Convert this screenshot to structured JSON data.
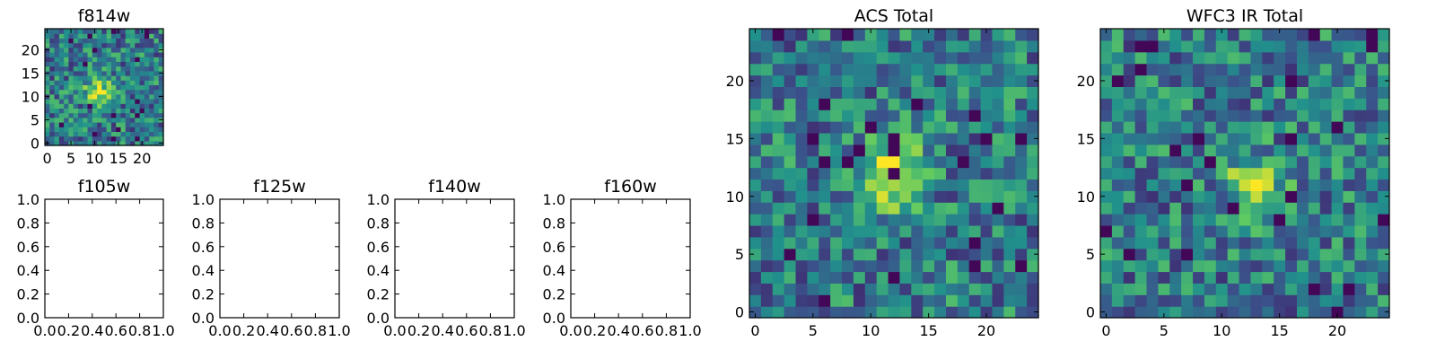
{
  "figure": {
    "background": "#ffffff",
    "colormap": [
      "#440154",
      "#3b528b",
      "#21918c",
      "#5ec962",
      "#fde725"
    ]
  },
  "chart_data": [
    {
      "type": "heatmap",
      "title": "f814w",
      "grid_size": 25,
      "seed": 11,
      "bright_center": [
        11,
        11
      ],
      "bright_sigma": 2.2,
      "xticks": [
        0,
        5,
        10,
        15,
        20
      ],
      "yticks": [
        0,
        5,
        10,
        15,
        20
      ],
      "xlim": [
        -0.5,
        24.5
      ],
      "ylim": [
        -0.5,
        24.5
      ]
    },
    {
      "type": "empty",
      "title": "f105w",
      "xlim": [
        0,
        1
      ],
      "ylim": [
        0,
        1
      ],
      "xticks": [
        "0.0",
        "0.2",
        "0.4",
        "0.6",
        "0.8",
        "1.0"
      ],
      "yticks": [
        "0.0",
        "0.2",
        "0.4",
        "0.6",
        "0.8",
        "1.0"
      ]
    },
    {
      "type": "empty",
      "title": "f125w",
      "xlim": [
        0,
        1
      ],
      "ylim": [
        0,
        1
      ],
      "xticks": [
        "0.0",
        "0.2",
        "0.4",
        "0.6",
        "0.8",
        "1.0"
      ],
      "yticks": [
        "0.0",
        "0.2",
        "0.4",
        "0.6",
        "0.8",
        "1.0"
      ]
    },
    {
      "type": "empty",
      "title": "f140w",
      "xlim": [
        0,
        1
      ],
      "ylim": [
        0,
        1
      ],
      "xticks": [
        "0.0",
        "0.2",
        "0.4",
        "0.6",
        "0.8",
        "1.0"
      ],
      "yticks": [
        "0.0",
        "0.2",
        "0.4",
        "0.6",
        "0.8",
        "1.0"
      ]
    },
    {
      "type": "empty",
      "title": "f160w",
      "xlim": [
        0,
        1
      ],
      "ylim": [
        0,
        1
      ],
      "xticks": [
        "0.0",
        "0.2",
        "0.4",
        "0.6",
        "0.8",
        "1.0"
      ],
      "yticks": [
        "0.0",
        "0.2",
        "0.4",
        "0.6",
        "0.8",
        "1.0"
      ]
    },
    {
      "type": "heatmap",
      "title": "ACS Total",
      "grid_size": 25,
      "seed": 23,
      "bright_center": [
        11.5,
        12
      ],
      "bright_sigma": 2.2,
      "xticks": [
        0,
        5,
        10,
        15,
        20
      ],
      "yticks": [
        0,
        5,
        10,
        15,
        20
      ],
      "xlim": [
        -0.5,
        24.5
      ],
      "ylim": [
        -0.5,
        24.5
      ]
    },
    {
      "type": "heatmap",
      "title": "WFC3 IR Total",
      "grid_size": 25,
      "seed": 37,
      "bright_center": [
        13,
        11
      ],
      "bright_sigma": 1.8,
      "xticks": [
        0,
        5,
        10,
        15,
        20
      ],
      "yticks": [
        0,
        5,
        10,
        15,
        20
      ],
      "xlim": [
        -0.5,
        24.5
      ],
      "ylim": [
        -0.5,
        24.5
      ]
    }
  ]
}
